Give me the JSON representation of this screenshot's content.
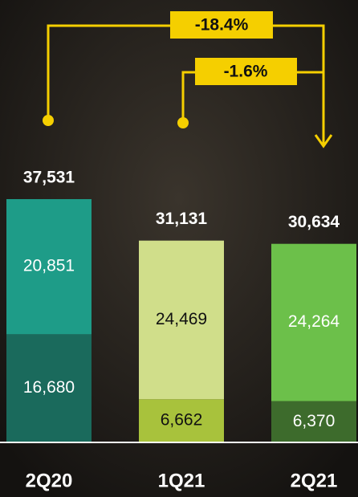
{
  "chart_data": {
    "type": "stacked-bar",
    "categories": [
      "2Q20",
      "1Q21",
      "2Q21"
    ],
    "series": [
      {
        "values": [
          16680,
          6662,
          6370
        ],
        "value_labels": [
          "16,680",
          "6,662",
          "6,370"
        ],
        "colors": [
          "#1a6a5c",
          "#a8c23c",
          "#3d6b2c"
        ]
      },
      {
        "values": [
          20851,
          24469,
          24264
        ],
        "value_labels": [
          "20,851",
          "24,469",
          "24,264"
        ],
        "colors": [
          "#1e9c88",
          "#d0de8a",
          "#6cc04a"
        ]
      }
    ],
    "totals": [
      37531,
      31131,
      30634
    ],
    "total_labels": [
      "37,531",
      "31,131",
      "30,634"
    ],
    "annotations": [
      "-18.4%",
      "-1.6%"
    ]
  }
}
